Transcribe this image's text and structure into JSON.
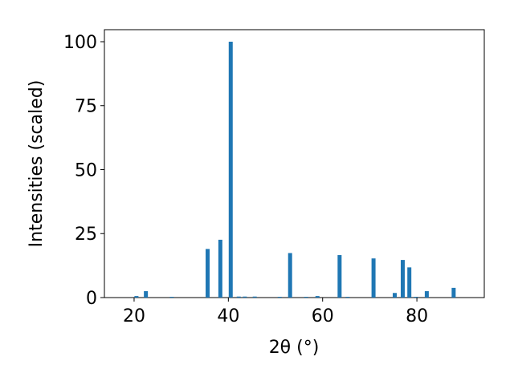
{
  "chart_data": {
    "type": "bar",
    "x_label": "2θ (°)",
    "y_label": "Intensities (scaled)",
    "x": [
      20.5,
      22.5,
      28,
      35.6,
      38.3,
      40.5,
      42.2,
      43.5,
      45.6,
      50.9,
      53.1,
      56.5,
      58.9,
      63.6,
      65.3,
      70.8,
      75.3,
      77,
      78.4,
      79.8,
      82.1,
      87.8
    ],
    "values": [
      0.6,
      2.5,
      0.3,
      19,
      22.6,
      100,
      0.4,
      0.4,
      0.4,
      0.3,
      17.4,
      0.3,
      0.6,
      16.6,
      0.3,
      15.3,
      1.8,
      14.7,
      11.8,
      0.3,
      2.5,
      3.8
    ],
    "color": "#1f77b4",
    "xlim": [
      13.7,
      94.3
    ],
    "xticks": [
      20,
      40,
      60,
      80
    ],
    "ylim": [
      0,
      104.7
    ],
    "yticks": [
      0,
      25,
      50,
      75,
      100
    ],
    "grid": false
  }
}
